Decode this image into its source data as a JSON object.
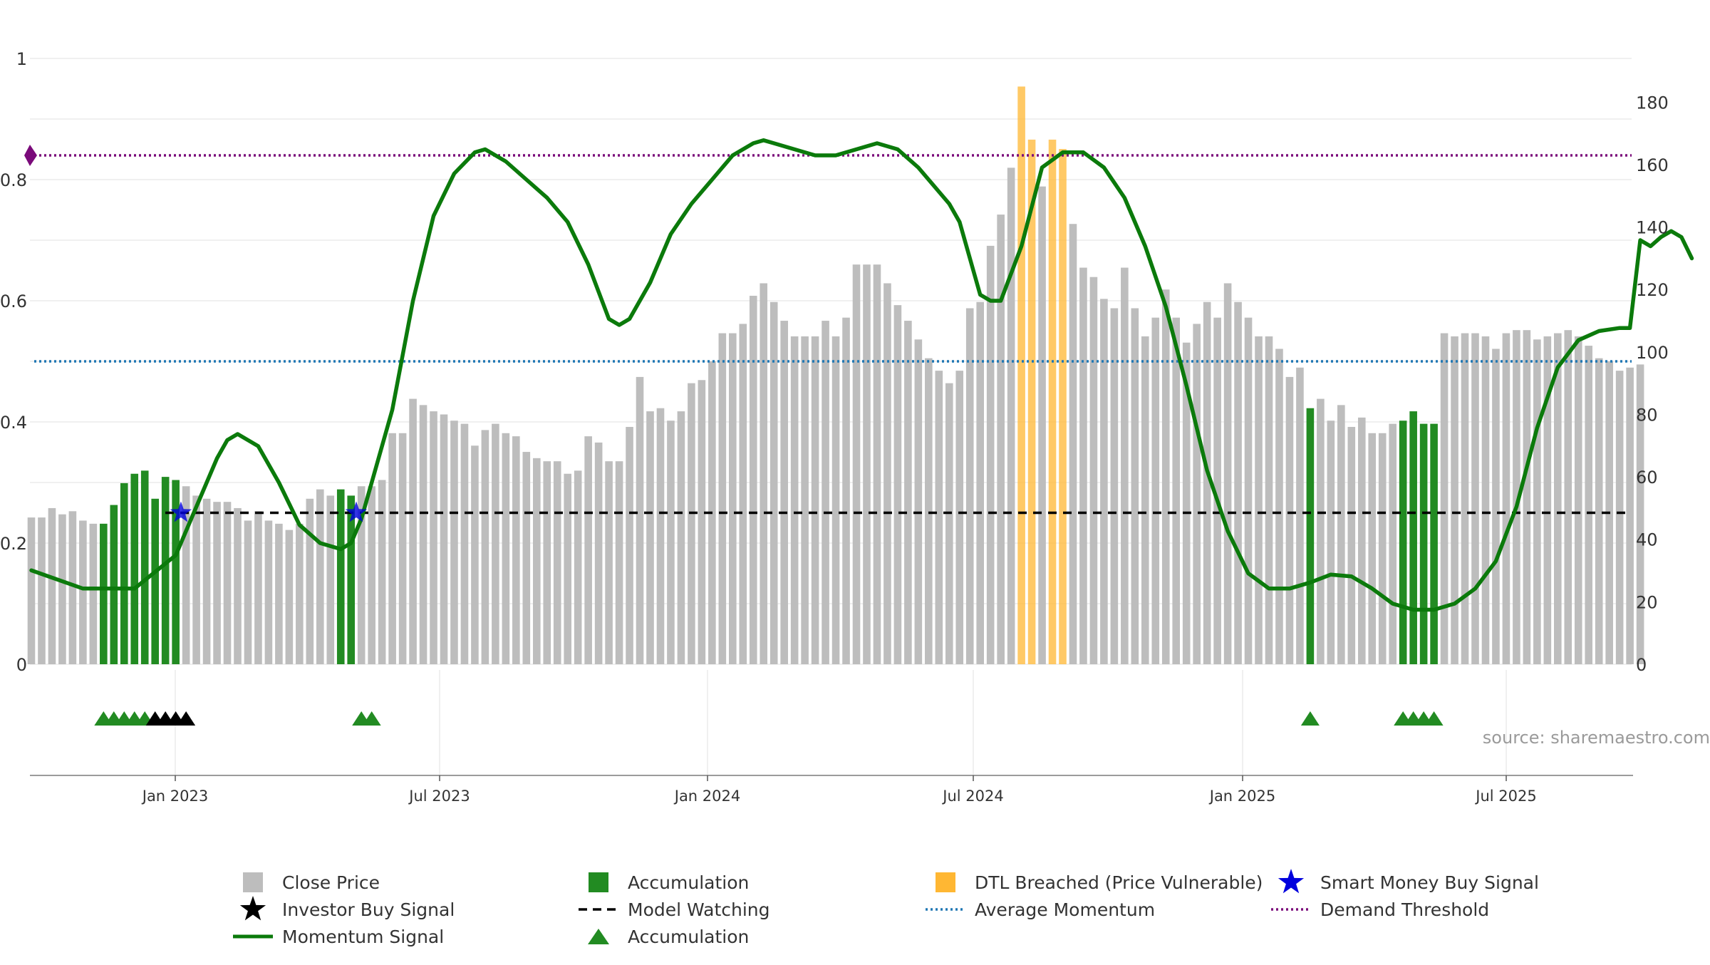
{
  "source_label": "source: sharemaestro.com",
  "colors": {
    "close_price": "#bdbdbd",
    "accumulation": "#228b22",
    "dtl": "#ffb733",
    "momentum": "#0b7a0b",
    "model_watching": "#000000",
    "average_momentum": "#1f77b4",
    "demand_threshold": "#7a0a7a",
    "smart_money": "#0000dd",
    "investor": "#000000",
    "triangle_accum": "#228b22",
    "triangle_investor": "#000000"
  },
  "chart_data": {
    "type": "bar",
    "x_tick_labels": [
      "Jan 2023",
      "Jul 2023",
      "Jan 2024",
      "Jul 2024",
      "Jan 2025",
      "Jul 2025"
    ],
    "left_axis": {
      "ylim": [
        0,
        1
      ],
      "tick_labels": [
        "0",
        "0.2",
        "0.4",
        "0.6",
        "0.8",
        "1"
      ]
    },
    "right_axis": {
      "ylim": [
        0,
        190
      ],
      "tick_labels": [
        "0",
        "20",
        "40",
        "60",
        "80",
        "100",
        "120",
        "140",
        "160",
        "180"
      ]
    },
    "legend": [
      {
        "label": "Close Price",
        "symbol": "square",
        "color": "#bdbdbd"
      },
      {
        "label": "Accumulation",
        "symbol": "square",
        "color": "#228b22"
      },
      {
        "label": "DTL Breached (Price Vulnerable)",
        "symbol": "square",
        "color": "#ffb733"
      },
      {
        "label": "Smart Money Buy Signal",
        "symbol": "star",
        "color": "#0000dd"
      },
      {
        "label": "Investor Buy Signal",
        "symbol": "star",
        "color": "#000000"
      },
      {
        "label": "Model Watching",
        "symbol": "dashed",
        "color": "#000000"
      },
      {
        "label": "Average Momentum",
        "symbol": "dotted",
        "color": "#1f77b4"
      },
      {
        "label": "Demand Threshold",
        "symbol": "dotted",
        "color": "#7a0a7a"
      },
      {
        "label": "Momentum Signal",
        "symbol": "line",
        "color": "#0b7a0b"
      },
      {
        "label": "Accumulation",
        "symbol": "triangle",
        "color": "#228b22"
      }
    ],
    "close_price": [
      {
        "i": 0,
        "v": 47,
        "t": "g"
      },
      {
        "i": 1,
        "v": 47,
        "t": "g"
      },
      {
        "i": 2,
        "v": 50,
        "t": "g"
      },
      {
        "i": 3,
        "v": 48,
        "t": "g"
      },
      {
        "i": 4,
        "v": 49,
        "t": "g"
      },
      {
        "i": 5,
        "v": 46,
        "t": "g"
      },
      {
        "i": 6,
        "v": 45,
        "t": "g"
      },
      {
        "i": 7,
        "v": 45,
        "t": "a"
      },
      {
        "i": 8,
        "v": 51,
        "t": "a"
      },
      {
        "i": 9,
        "v": 58,
        "t": "a"
      },
      {
        "i": 10,
        "v": 61,
        "t": "a"
      },
      {
        "i": 11,
        "v": 62,
        "t": "a"
      },
      {
        "i": 12,
        "v": 53,
        "t": "a"
      },
      {
        "i": 13,
        "v": 60,
        "t": "a"
      },
      {
        "i": 14,
        "v": 59,
        "t": "a"
      },
      {
        "i": 15,
        "v": 57,
        "t": "g"
      },
      {
        "i": 16,
        "v": 54,
        "t": "g"
      },
      {
        "i": 17,
        "v": 53,
        "t": "g"
      },
      {
        "i": 18,
        "v": 52,
        "t": "g"
      },
      {
        "i": 19,
        "v": 52,
        "t": "g"
      },
      {
        "i": 20,
        "v": 50,
        "t": "g"
      },
      {
        "i": 21,
        "v": 46,
        "t": "g"
      },
      {
        "i": 22,
        "v": 49,
        "t": "g"
      },
      {
        "i": 23,
        "v": 46,
        "t": "g"
      },
      {
        "i": 24,
        "v": 45,
        "t": "g"
      },
      {
        "i": 25,
        "v": 43,
        "t": "g"
      },
      {
        "i": 26,
        "v": 45,
        "t": "g"
      },
      {
        "i": 27,
        "v": 53,
        "t": "g"
      },
      {
        "i": 28,
        "v": 56,
        "t": "g"
      },
      {
        "i": 29,
        "v": 54,
        "t": "g"
      },
      {
        "i": 30,
        "v": 56,
        "t": "a"
      },
      {
        "i": 31,
        "v": 54,
        "t": "a"
      },
      {
        "i": 32,
        "v": 57,
        "t": "g"
      },
      {
        "i": 33,
        "v": 57,
        "t": "g"
      },
      {
        "i": 34,
        "v": 59,
        "t": "g"
      },
      {
        "i": 35,
        "v": 74,
        "t": "g"
      },
      {
        "i": 36,
        "v": 74,
        "t": "g"
      },
      {
        "i": 37,
        "v": 85,
        "t": "g"
      },
      {
        "i": 38,
        "v": 83,
        "t": "g"
      },
      {
        "i": 39,
        "v": 81,
        "t": "g"
      },
      {
        "i": 40,
        "v": 80,
        "t": "g"
      },
      {
        "i": 41,
        "v": 78,
        "t": "g"
      },
      {
        "i": 42,
        "v": 77,
        "t": "g"
      },
      {
        "i": 43,
        "v": 70,
        "t": "g"
      },
      {
        "i": 44,
        "v": 75,
        "t": "g"
      },
      {
        "i": 45,
        "v": 77,
        "t": "g"
      },
      {
        "i": 46,
        "v": 74,
        "t": "g"
      },
      {
        "i": 47,
        "v": 73,
        "t": "g"
      },
      {
        "i": 48,
        "v": 68,
        "t": "g"
      },
      {
        "i": 49,
        "v": 66,
        "t": "g"
      },
      {
        "i": 50,
        "v": 65,
        "t": "g"
      },
      {
        "i": 51,
        "v": 65,
        "t": "g"
      },
      {
        "i": 52,
        "v": 61,
        "t": "g"
      },
      {
        "i": 53,
        "v": 62,
        "t": "g"
      },
      {
        "i": 54,
        "v": 73,
        "t": "g"
      },
      {
        "i": 55,
        "v": 71,
        "t": "g"
      },
      {
        "i": 56,
        "v": 65,
        "t": "g"
      },
      {
        "i": 57,
        "v": 65,
        "t": "g"
      },
      {
        "i": 58,
        "v": 76,
        "t": "g"
      },
      {
        "i": 59,
        "v": 92,
        "t": "g"
      },
      {
        "i": 60,
        "v": 81,
        "t": "g"
      },
      {
        "i": 61,
        "v": 82,
        "t": "g"
      },
      {
        "i": 62,
        "v": 78,
        "t": "g"
      },
      {
        "i": 63,
        "v": 81,
        "t": "g"
      },
      {
        "i": 64,
        "v": 90,
        "t": "g"
      },
      {
        "i": 65,
        "v": 91,
        "t": "g"
      },
      {
        "i": 66,
        "v": 97,
        "t": "g"
      },
      {
        "i": 67,
        "v": 106,
        "t": "g"
      },
      {
        "i": 68,
        "v": 106,
        "t": "g"
      },
      {
        "i": 69,
        "v": 109,
        "t": "g"
      },
      {
        "i": 70,
        "v": 118,
        "t": "g"
      },
      {
        "i": 71,
        "v": 122,
        "t": "g"
      },
      {
        "i": 72,
        "v": 116,
        "t": "g"
      },
      {
        "i": 73,
        "v": 110,
        "t": "g"
      },
      {
        "i": 74,
        "v": 105,
        "t": "g"
      },
      {
        "i": 75,
        "v": 105,
        "t": "g"
      },
      {
        "i": 76,
        "v": 105,
        "t": "g"
      },
      {
        "i": 77,
        "v": 110,
        "t": "g"
      },
      {
        "i": 78,
        "v": 105,
        "t": "g"
      },
      {
        "i": 79,
        "v": 111,
        "t": "g"
      },
      {
        "i": 80,
        "v": 128,
        "t": "g"
      },
      {
        "i": 81,
        "v": 128,
        "t": "g"
      },
      {
        "i": 82,
        "v": 128,
        "t": "g"
      },
      {
        "i": 83,
        "v": 122,
        "t": "g"
      },
      {
        "i": 84,
        "v": 115,
        "t": "g"
      },
      {
        "i": 85,
        "v": 110,
        "t": "g"
      },
      {
        "i": 86,
        "v": 104,
        "t": "g"
      },
      {
        "i": 87,
        "v": 98,
        "t": "g"
      },
      {
        "i": 88,
        "v": 94,
        "t": "g"
      },
      {
        "i": 89,
        "v": 90,
        "t": "g"
      },
      {
        "i": 90,
        "v": 94,
        "t": "g"
      },
      {
        "i": 91,
        "v": 114,
        "t": "g"
      },
      {
        "i": 92,
        "v": 116,
        "t": "g"
      },
      {
        "i": 93,
        "v": 134,
        "t": "g"
      },
      {
        "i": 94,
        "v": 144,
        "t": "g"
      },
      {
        "i": 95,
        "v": 159,
        "t": "g"
      },
      {
        "i": 96,
        "v": 185,
        "t": "d"
      },
      {
        "i": 97,
        "v": 168,
        "t": "d"
      },
      {
        "i": 98,
        "v": 153,
        "t": "g"
      },
      {
        "i": 99,
        "v": 168,
        "t": "d"
      },
      {
        "i": 100,
        "v": 165,
        "t": "d"
      },
      {
        "i": 101,
        "v": 141,
        "t": "g"
      },
      {
        "i": 102,
        "v": 127,
        "t": "g"
      },
      {
        "i": 103,
        "v": 124,
        "t": "g"
      },
      {
        "i": 104,
        "v": 117,
        "t": "g"
      },
      {
        "i": 105,
        "v": 114,
        "t": "g"
      },
      {
        "i": 106,
        "v": 127,
        "t": "g"
      },
      {
        "i": 107,
        "v": 114,
        "t": "g"
      },
      {
        "i": 108,
        "v": 105,
        "t": "g"
      },
      {
        "i": 109,
        "v": 111,
        "t": "g"
      },
      {
        "i": 110,
        "v": 120,
        "t": "g"
      },
      {
        "i": 111,
        "v": 111,
        "t": "g"
      },
      {
        "i": 112,
        "v": 103,
        "t": "g"
      },
      {
        "i": 113,
        "v": 109,
        "t": "g"
      },
      {
        "i": 114,
        "v": 116,
        "t": "g"
      },
      {
        "i": 115,
        "v": 111,
        "t": "g"
      },
      {
        "i": 116,
        "v": 122,
        "t": "g"
      },
      {
        "i": 117,
        "v": 116,
        "t": "g"
      },
      {
        "i": 118,
        "v": 111,
        "t": "g"
      },
      {
        "i": 119,
        "v": 105,
        "t": "g"
      },
      {
        "i": 120,
        "v": 105,
        "t": "g"
      },
      {
        "i": 121,
        "v": 101,
        "t": "g"
      },
      {
        "i": 122,
        "v": 92,
        "t": "g"
      },
      {
        "i": 123,
        "v": 95,
        "t": "g"
      },
      {
        "i": 124,
        "v": 82,
        "t": "a"
      },
      {
        "i": 125,
        "v": 85,
        "t": "g"
      },
      {
        "i": 126,
        "v": 78,
        "t": "g"
      },
      {
        "i": 127,
        "v": 83,
        "t": "g"
      },
      {
        "i": 128,
        "v": 76,
        "t": "g"
      },
      {
        "i": 129,
        "v": 79,
        "t": "g"
      },
      {
        "i": 130,
        "v": 74,
        "t": "g"
      },
      {
        "i": 131,
        "v": 74,
        "t": "g"
      },
      {
        "i": 132,
        "v": 77,
        "t": "g"
      },
      {
        "i": 133,
        "v": 78,
        "t": "a"
      },
      {
        "i": 134,
        "v": 81,
        "t": "a"
      },
      {
        "i": 135,
        "v": 77,
        "t": "a"
      },
      {
        "i": 136,
        "v": 77,
        "t": "a"
      },
      {
        "i": 137,
        "v": 106,
        "t": "g"
      },
      {
        "i": 138,
        "v": 105,
        "t": "g"
      },
      {
        "i": 139,
        "v": 106,
        "t": "g"
      },
      {
        "i": 140,
        "v": 106,
        "t": "g"
      },
      {
        "i": 141,
        "v": 105,
        "t": "g"
      },
      {
        "i": 142,
        "v": 101,
        "t": "g"
      },
      {
        "i": 143,
        "v": 106,
        "t": "g"
      },
      {
        "i": 144,
        "v": 107,
        "t": "g"
      },
      {
        "i": 145,
        "v": 107,
        "t": "g"
      },
      {
        "i": 146,
        "v": 104,
        "t": "g"
      },
      {
        "i": 147,
        "v": 105,
        "t": "g"
      },
      {
        "i": 148,
        "v": 106,
        "t": "g"
      },
      {
        "i": 149,
        "v": 107,
        "t": "g"
      },
      {
        "i": 150,
        "v": 105,
        "t": "g"
      },
      {
        "i": 151,
        "v": 102,
        "t": "g"
      },
      {
        "i": 152,
        "v": 98,
        "t": "g"
      },
      {
        "i": 153,
        "v": 97,
        "t": "g"
      },
      {
        "i": 154,
        "v": 94,
        "t": "g"
      },
      {
        "i": 155,
        "v": 95,
        "t": "g"
      },
      {
        "i": 156,
        "v": 96,
        "t": "g"
      }
    ],
    "momentum_signal": [
      [
        0,
        0.155
      ],
      [
        5,
        0.125
      ],
      [
        10,
        0.125
      ],
      [
        14,
        0.18
      ],
      [
        16,
        0.26
      ],
      [
        18,
        0.34
      ],
      [
        19,
        0.37
      ],
      [
        20,
        0.38
      ],
      [
        22,
        0.36
      ],
      [
        24,
        0.3
      ],
      [
        26,
        0.23
      ],
      [
        28,
        0.2
      ],
      [
        30,
        0.19
      ],
      [
        31,
        0.2
      ],
      [
        32,
        0.24
      ],
      [
        33,
        0.3
      ],
      [
        35,
        0.42
      ],
      [
        37,
        0.6
      ],
      [
        39,
        0.74
      ],
      [
        41,
        0.81
      ],
      [
        43,
        0.845
      ],
      [
        44,
        0.85
      ],
      [
        46,
        0.83
      ],
      [
        48,
        0.8
      ],
      [
        50,
        0.77
      ],
      [
        52,
        0.73
      ],
      [
        54,
        0.66
      ],
      [
        56,
        0.57
      ],
      [
        57,
        0.56
      ],
      [
        58,
        0.57
      ],
      [
        60,
        0.63
      ],
      [
        62,
        0.71
      ],
      [
        64,
        0.76
      ],
      [
        66,
        0.8
      ],
      [
        68,
        0.84
      ],
      [
        70,
        0.86
      ],
      [
        71,
        0.865
      ],
      [
        72,
        0.86
      ],
      [
        74,
        0.85
      ],
      [
        76,
        0.84
      ],
      [
        78,
        0.84
      ],
      [
        80,
        0.85
      ],
      [
        82,
        0.86
      ],
      [
        84,
        0.85
      ],
      [
        86,
        0.82
      ],
      [
        88,
        0.78
      ],
      [
        89,
        0.76
      ],
      [
        90,
        0.73
      ],
      [
        92,
        0.61
      ],
      [
        93,
        0.6
      ],
      [
        94,
        0.6
      ],
      [
        96,
        0.69
      ],
      [
        98,
        0.82
      ],
      [
        100,
        0.845
      ],
      [
        102,
        0.845
      ],
      [
        104,
        0.82
      ],
      [
        106,
        0.77
      ],
      [
        108,
        0.69
      ],
      [
        110,
        0.59
      ],
      [
        112,
        0.46
      ],
      [
        114,
        0.32
      ],
      [
        116,
        0.22
      ],
      [
        118,
        0.15
      ],
      [
        120,
        0.125
      ],
      [
        122,
        0.125
      ],
      [
        124,
        0.135
      ],
      [
        126,
        0.148
      ],
      [
        128,
        0.145
      ],
      [
        130,
        0.125
      ],
      [
        132,
        0.1
      ],
      [
        134,
        0.09
      ],
      [
        136,
        0.09
      ],
      [
        138,
        0.1
      ],
      [
        140,
        0.125
      ],
      [
        142,
        0.17
      ],
      [
        144,
        0.26
      ],
      [
        146,
        0.39
      ],
      [
        148,
        0.49
      ],
      [
        150,
        0.535
      ],
      [
        152,
        0.55
      ],
      [
        154,
        0.555
      ],
      [
        155,
        0.555
      ],
      [
        156,
        0.7
      ],
      [
        157,
        0.69
      ],
      [
        158,
        0.705
      ],
      [
        159,
        0.715
      ],
      [
        160,
        0.705
      ],
      [
        161,
        0.67
      ]
    ],
    "average_momentum": 0.5,
    "demand_threshold": 0.84,
    "model_watching": 0.25,
    "smart_money_buy_signals": [
      {
        "i": 14.5,
        "y": 0.25
      },
      {
        "i": 31.5,
        "y": 0.25
      }
    ],
    "accumulation_triangles": [
      7,
      8,
      9,
      10,
      11,
      32,
      33,
      124,
      133,
      134,
      135,
      136
    ],
    "investor_triangles": [
      12,
      13,
      14,
      15
    ]
  }
}
